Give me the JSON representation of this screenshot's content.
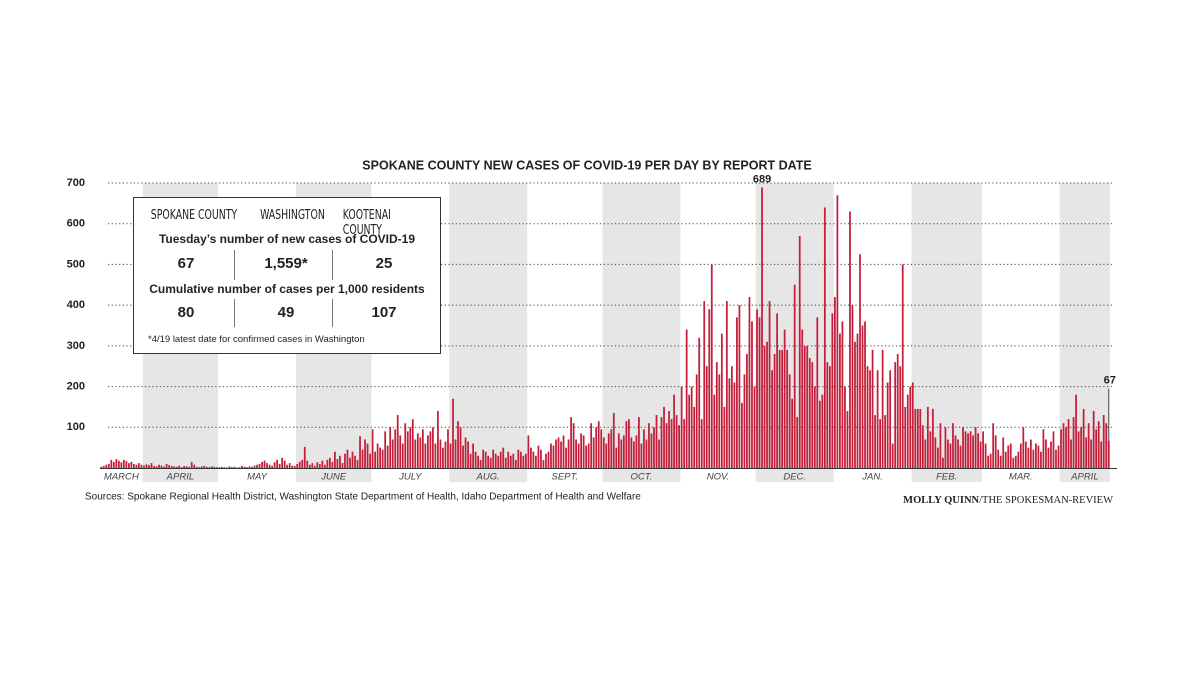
{
  "chart_data": {
    "type": "bar",
    "title": "SPOKANE COUNTY NEW CASES OF COVID-19 PER DAY BY REPORT DATE",
    "color": "#c41e3a",
    "band_color": "#e6e6e6",
    "grid": true,
    "ylim": [
      0,
      700
    ],
    "yticks": [
      100,
      200,
      300,
      400,
      500,
      600,
      700
    ],
    "months": [
      {
        "label": "MARCH",
        "values": [
          3,
          5,
          8,
          10,
          20,
          15,
          22,
          18,
          14,
          20,
          17,
          12,
          15,
          10,
          8,
          12,
          8
        ]
      },
      {
        "label": "APRIL",
        "values": [
          6,
          9,
          7,
          12,
          5,
          4,
          8,
          6,
          3,
          10,
          7,
          5,
          4,
          3,
          6,
          2,
          5,
          4,
          3,
          15,
          8,
          3,
          2,
          4,
          5,
          3,
          2,
          4,
          3,
          2
        ]
      },
      {
        "label": "MAY",
        "values": [
          2,
          3,
          2,
          1,
          4,
          2,
          3,
          1,
          2,
          5,
          3,
          2,
          4,
          3,
          6,
          8,
          10,
          15,
          18,
          12,
          8,
          5,
          14,
          20,
          10,
          25,
          18,
          8,
          12,
          6,
          5
        ]
      },
      {
        "label": "JUNE",
        "values": [
          10,
          15,
          20,
          52,
          18,
          8,
          12,
          5,
          14,
          10,
          18,
          8,
          20,
          25,
          15,
          40,
          22,
          30,
          12,
          35,
          45,
          25,
          40,
          30,
          20,
          78,
          45,
          70,
          60,
          35
        ]
      },
      {
        "label": "JULY",
        "values": [
          95,
          40,
          60,
          50,
          45,
          90,
          55,
          100,
          70,
          95,
          130,
          80,
          60,
          110,
          90,
          100,
          120,
          70,
          85,
          75,
          95,
          60,
          80,
          90,
          100,
          60,
          140,
          70,
          50,
          65,
          95
        ]
      },
      {
        "label": "AUG.",
        "values": [
          60,
          170,
          70,
          115,
          100,
          55,
          75,
          65,
          35,
          60,
          40,
          30,
          20,
          45,
          40,
          30,
          25,
          45,
          35,
          30,
          40,
          50,
          25,
          40,
          30,
          35,
          20,
          45,
          40,
          30,
          35
        ]
      },
      {
        "label": "SEPT.",
        "values": [
          80,
          50,
          40,
          30,
          55,
          45,
          20,
          35,
          40,
          60,
          55,
          70,
          75,
          65,
          80,
          50,
          70,
          125,
          110,
          70,
          60,
          85,
          80,
          55,
          60,
          110,
          75,
          100,
          115,
          95
        ]
      },
      {
        "label": "OCT.",
        "values": [
          75,
          60,
          85,
          95,
          135,
          50,
          85,
          70,
          80,
          115,
          120,
          75,
          65,
          80,
          125,
          60,
          95,
          70,
          110,
          85,
          100,
          130,
          70,
          125,
          150,
          110,
          140,
          120,
          180,
          130,
          105
        ]
      },
      {
        "label": "NOV.",
        "values": [
          200,
          120,
          340,
          180,
          200,
          150,
          230,
          320,
          120,
          410,
          250,
          390,
          500,
          180,
          260,
          230,
          330,
          150,
          410,
          220,
          250,
          210,
          370,
          400,
          160,
          230,
          280,
          420,
          360,
          200
        ]
      },
      {
        "label": "DEC.",
        "values": [
          390,
          370,
          689,
          300,
          310,
          410,
          240,
          280,
          380,
          290,
          290,
          340,
          290,
          230,
          170,
          450,
          125,
          570,
          340,
          300,
          300,
          270,
          260,
          200,
          370,
          165,
          180,
          640,
          260,
          250,
          380
        ]
      },
      {
        "label": "JAN.",
        "values": [
          420,
          670,
          330,
          360,
          200,
          140,
          630,
          400,
          310,
          330,
          525,
          350,
          360,
          250,
          240,
          290,
          130,
          240,
          120,
          290,
          130,
          210,
          240,
          60,
          260,
          280,
          250,
          500,
          150,
          180,
          200
        ]
      },
      {
        "label": "FEB.",
        "values": [
          210,
          145,
          145,
          145,
          105,
          70,
          150,
          90,
          145,
          75,
          50,
          110,
          25,
          100,
          70,
          60,
          110,
          80,
          70,
          55,
          100,
          90,
          85,
          90,
          80,
          100,
          85,
          65
        ]
      },
      {
        "label": "MAR.",
        "values": [
          90,
          60,
          30,
          35,
          110,
          80,
          45,
          30,
          75,
          40,
          55,
          60,
          25,
          30,
          40,
          60,
          100,
          65,
          50,
          70,
          45,
          60,
          55,
          40,
          95,
          70,
          50,
          65,
          90,
          45,
          55
        ]
      },
      {
        "label": "APRIL",
        "values": [
          95,
          110,
          100,
          120,
          70,
          125,
          180,
          90,
          100,
          145,
          75,
          110,
          70,
          140,
          95,
          115,
          65,
          130,
          110,
          67
        ]
      }
    ],
    "source": "Sources: Spokane Regional Health District, Washington State Department of Health, Idaho Department of Health and Welfare",
    "credit_name": "MOLLY QUINN",
    "credit_org": "/THE SPOKESMAN-REVIEW"
  },
  "inset": {
    "headers": [
      "SPOKANE COUNTY",
      "WASHINGTON",
      "KOOTENAI COUNTY"
    ],
    "row1_title": "Tuesday’s number of new cases of COVID-19",
    "row1": [
      "67",
      "1,559*",
      "25"
    ],
    "row2_title": "Cumulative number of cases per 1,000 residents",
    "row2": [
      "80",
      "49",
      "107"
    ],
    "note": "*4/19 latest date for confirmed cases in Washington"
  }
}
